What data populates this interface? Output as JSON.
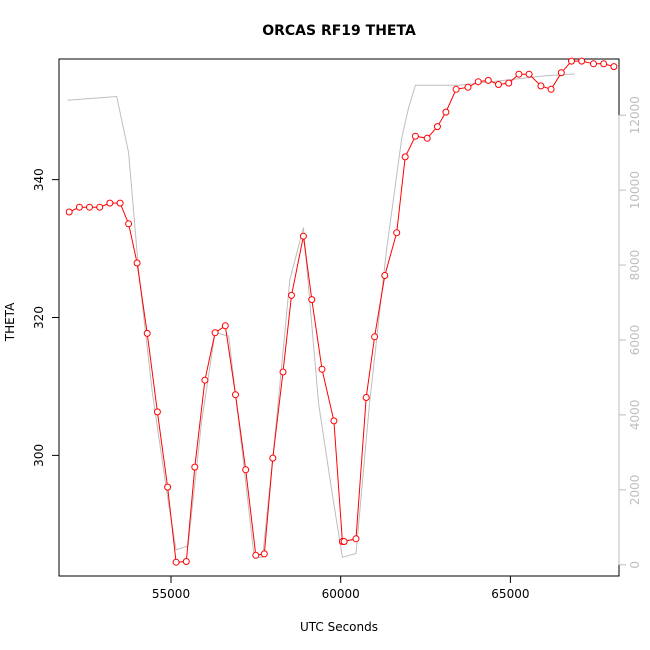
{
  "chart_data": {
    "type": "line",
    "title": "ORCAS RF19 THETA",
    "xlabel": "UTC Seconds",
    "ylabel": "THETA",
    "xlim": [
      51700,
      68200
    ],
    "ylim": [
      282.5,
      357.5
    ],
    "y2lim": [
      -300,
      13500
    ],
    "x_ticks": [
      55000,
      60000,
      65000
    ],
    "y_ticks": [
      300,
      320,
      340
    ],
    "y2_ticks": [
      0,
      2000,
      4000,
      6000,
      8000,
      10000,
      12000
    ],
    "grid": false,
    "legend": "none",
    "series": [
      {
        "axis": "left",
        "style": "line+open-circles",
        "color": "#ff0000",
        "x": [
          52000,
          52300,
          52600,
          52900,
          53200,
          53500,
          53750,
          54000,
          54300,
          54600,
          54900,
          55150,
          55450,
          55700,
          56000,
          56300,
          56600,
          56900,
          57200,
          57500,
          57750,
          58000,
          58300,
          58550,
          58900,
          59150,
          59450,
          59800,
          60050,
          60100,
          60450,
          60750,
          61000,
          61300,
          61650,
          61900,
          62200,
          62550,
          62850,
          63100,
          63400,
          63750,
          64050,
          64350,
          64650,
          64950,
          65250,
          65550,
          65900,
          66200,
          66500,
          66800,
          67100,
          67450,
          67750,
          68050
        ],
        "y": [
          335.3,
          336.0,
          336.0,
          336.0,
          336.6,
          336.6,
          333.6,
          327.9,
          317.7,
          306.3,
          295.4,
          284.5,
          284.6,
          298.3,
          310.9,
          317.8,
          318.8,
          308.8,
          297.9,
          285.5,
          285.7,
          299.6,
          312.1,
          323.2,
          331.8,
          322.6,
          312.5,
          305.0,
          287.5,
          287.5,
          287.9,
          308.4,
          317.2,
          326.1,
          332.3,
          343.3,
          346.3,
          346.0,
          347.7,
          349.8,
          353.1,
          353.4,
          354.2,
          354.4,
          353.8,
          354.0,
          355.3,
          355.3,
          353.6,
          353.1,
          355.5,
          357.2,
          357.2,
          356.8,
          356.8,
          356.4
        ]
      },
      {
        "axis": "right",
        "style": "line",
        "color": "#bebebe",
        "x": [
          51950,
          53400,
          53750,
          54050,
          54450,
          54900,
          55150,
          55500,
          55900,
          56300,
          56700,
          57100,
          57450,
          57700,
          58050,
          58500,
          58900,
          59350,
          59750,
          60050,
          60450,
          60850,
          61350,
          61800,
          62000,
          62200,
          62900,
          63500,
          64000,
          64500,
          65000,
          65500,
          66000,
          66500,
          66900
        ],
        "y": [
          12400,
          12500,
          11000,
          7800,
          4600,
          1800,
          400,
          500,
          3800,
          6200,
          6100,
          3000,
          200,
          200,
          3300,
          7600,
          9000,
          4300,
          1900,
          200,
          300,
          4300,
          8400,
          11400,
          12200,
          12800,
          12800,
          12800,
          12850,
          12900,
          12950,
          13000,
          13050,
          13080,
          13100
        ]
      }
    ]
  }
}
